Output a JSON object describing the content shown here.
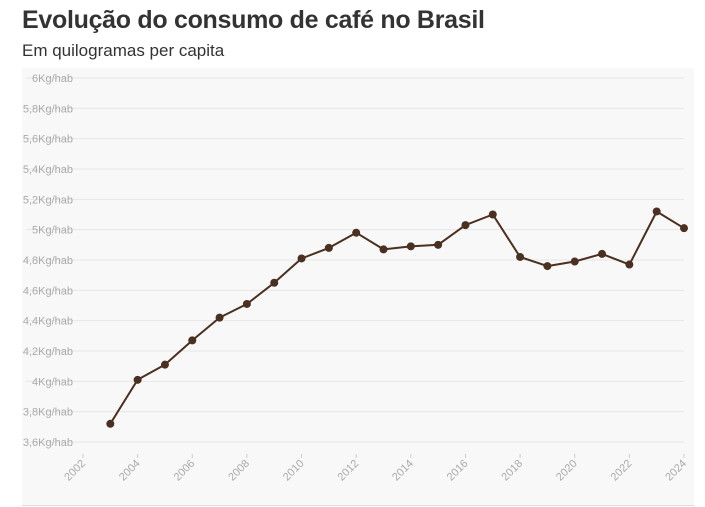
{
  "title": "Evolução do consumo de café no Brasil",
  "subtitle": "Em quilogramas per capita",
  "colors": {
    "line": "#4a3020",
    "grid": "#e6e6e6",
    "tick_text": "#aaaaaa",
    "title_text": "#333333"
  },
  "chart_data": {
    "type": "line",
    "title": "Evolução do consumo de café no Brasil",
    "subtitle": "Em quilogramas per capita",
    "xlabel": "",
    "ylabel": "",
    "x": [
      2003,
      2004,
      2005,
      2006,
      2007,
      2008,
      2009,
      2010,
      2011,
      2012,
      2013,
      2014,
      2015,
      2016,
      2017,
      2018,
      2019,
      2020,
      2021,
      2022,
      2023,
      2024
    ],
    "series": [
      {
        "values": [
          3.72,
          4.01,
          4.11,
          4.27,
          4.42,
          4.51,
          4.65,
          4.81,
          4.88,
          4.98,
          4.87,
          4.89,
          4.9,
          5.03,
          5.1,
          4.82,
          4.76,
          4.79,
          4.84,
          4.77,
          5.12,
          5.01
        ]
      }
    ],
    "xlim": [
      2002,
      2024
    ],
    "ylim": [
      3.5,
      6.0
    ],
    "x_ticks": [
      2002,
      2004,
      2006,
      2008,
      2010,
      2012,
      2014,
      2016,
      2018,
      2020,
      2022,
      2024
    ],
    "x_tick_labels": [
      "2002",
      "2004",
      "2006",
      "2008",
      "2010",
      "2012",
      "2014",
      "2016",
      "2018",
      "2020",
      "2022",
      "2024"
    ],
    "y_ticks": [
      3.6,
      3.8,
      4.0,
      4.2,
      4.4,
      4.6,
      4.8,
      5.0,
      5.2,
      5.4,
      5.6,
      5.8,
      6.0
    ],
    "y_tick_labels": [
      "3,6Kg/hab",
      "3,8Kg/hab",
      "4Kg/hab",
      "4,2Kg/hab",
      "4,4Kg/hab",
      "4,6Kg/hab",
      "4,8Kg/hab",
      "5Kg/hab",
      "5,2Kg/hab",
      "5,4Kg/hab",
      "5,6Kg/hab",
      "5,8Kg/hab",
      "6Kg/hab"
    ],
    "grid": true,
    "legend": "none"
  }
}
